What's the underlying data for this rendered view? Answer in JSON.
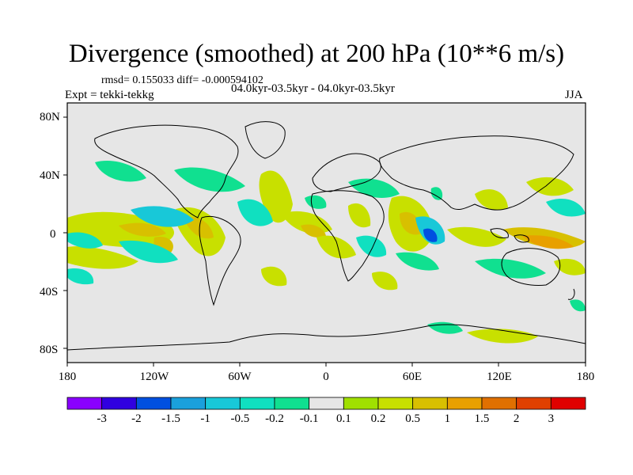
{
  "title": "Divergence (smoothed) at 200 hPa (10**6 m/s)",
  "stats": "rmsd= 0.155033 diff= -0.000594102",
  "expt": "Expt = tekki-tekkg",
  "period": "04.0kyr-03.5kyr - 04.0kyr-03.5kyr",
  "season": "JJA",
  "map": {
    "lat_labels": [
      "80N",
      "40N",
      "0",
      "40S",
      "80S"
    ],
    "lon_labels": [
      "180",
      "120W",
      "60W",
      "0",
      "60E",
      "120E",
      "180"
    ],
    "lat_values": [
      80,
      40,
      0,
      -40,
      -80
    ],
    "lon_values": [
      -180,
      -120,
      -60,
      0,
      60,
      120,
      180
    ],
    "background_color": "#e6e6e6",
    "coast_color": "#000000"
  },
  "colorbar": {
    "colors": [
      "#8a00ff",
      "#3000e0",
      "#0050e0",
      "#1aa0dc",
      "#18c8d8",
      "#10e0c0",
      "#10e090",
      "#e6e6e6",
      "#a0e000",
      "#c8e000",
      "#d8c000",
      "#e8a000",
      "#e07000",
      "#e04000",
      "#e00000"
    ],
    "labels": [
      "-3",
      "-2",
      "-1.5",
      "-1",
      "-0.5",
      "-0.2",
      "-0.1",
      "0.1",
      "0.2",
      "0.5",
      "1",
      "1.5",
      "2",
      "3"
    ]
  }
}
